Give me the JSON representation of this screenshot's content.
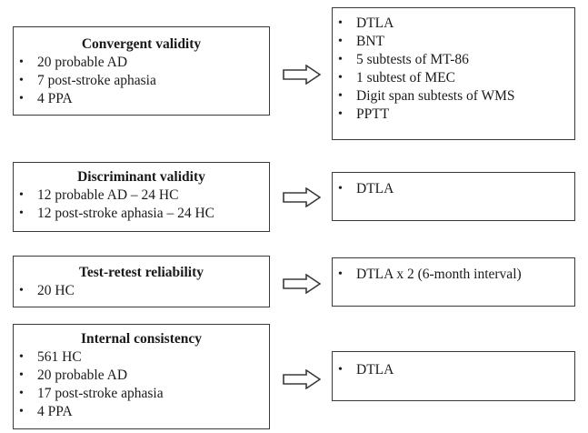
{
  "rows": [
    {
      "title": "Convergent validity",
      "left_items": [
        "20 probable AD",
        "7 post-stroke aphasia",
        "4 PPA"
      ],
      "right_items": [
        "DTLA",
        "BNT",
        "5 subtests of MT-86",
        "1 subtest of MEC",
        "Digit span subtests of WMS",
        "PPTT"
      ]
    },
    {
      "title": "Discriminant validity",
      "left_items": [
        "12 probable AD – 24 HC",
        "12 post-stroke aphasia – 24 HC"
      ],
      "right_items": [
        "DTLA"
      ]
    },
    {
      "title": "Test-retest reliability",
      "left_items": [
        "20 HC"
      ],
      "right_items": [
        "DTLA x 2 (6-month interval)"
      ]
    },
    {
      "title": "Internal consistency",
      "left_items": [
        "561 HC",
        "20 probable AD",
        "17 post-stroke aphasia",
        "4 PPA"
      ],
      "right_items": [
        "DTLA"
      ]
    }
  ]
}
